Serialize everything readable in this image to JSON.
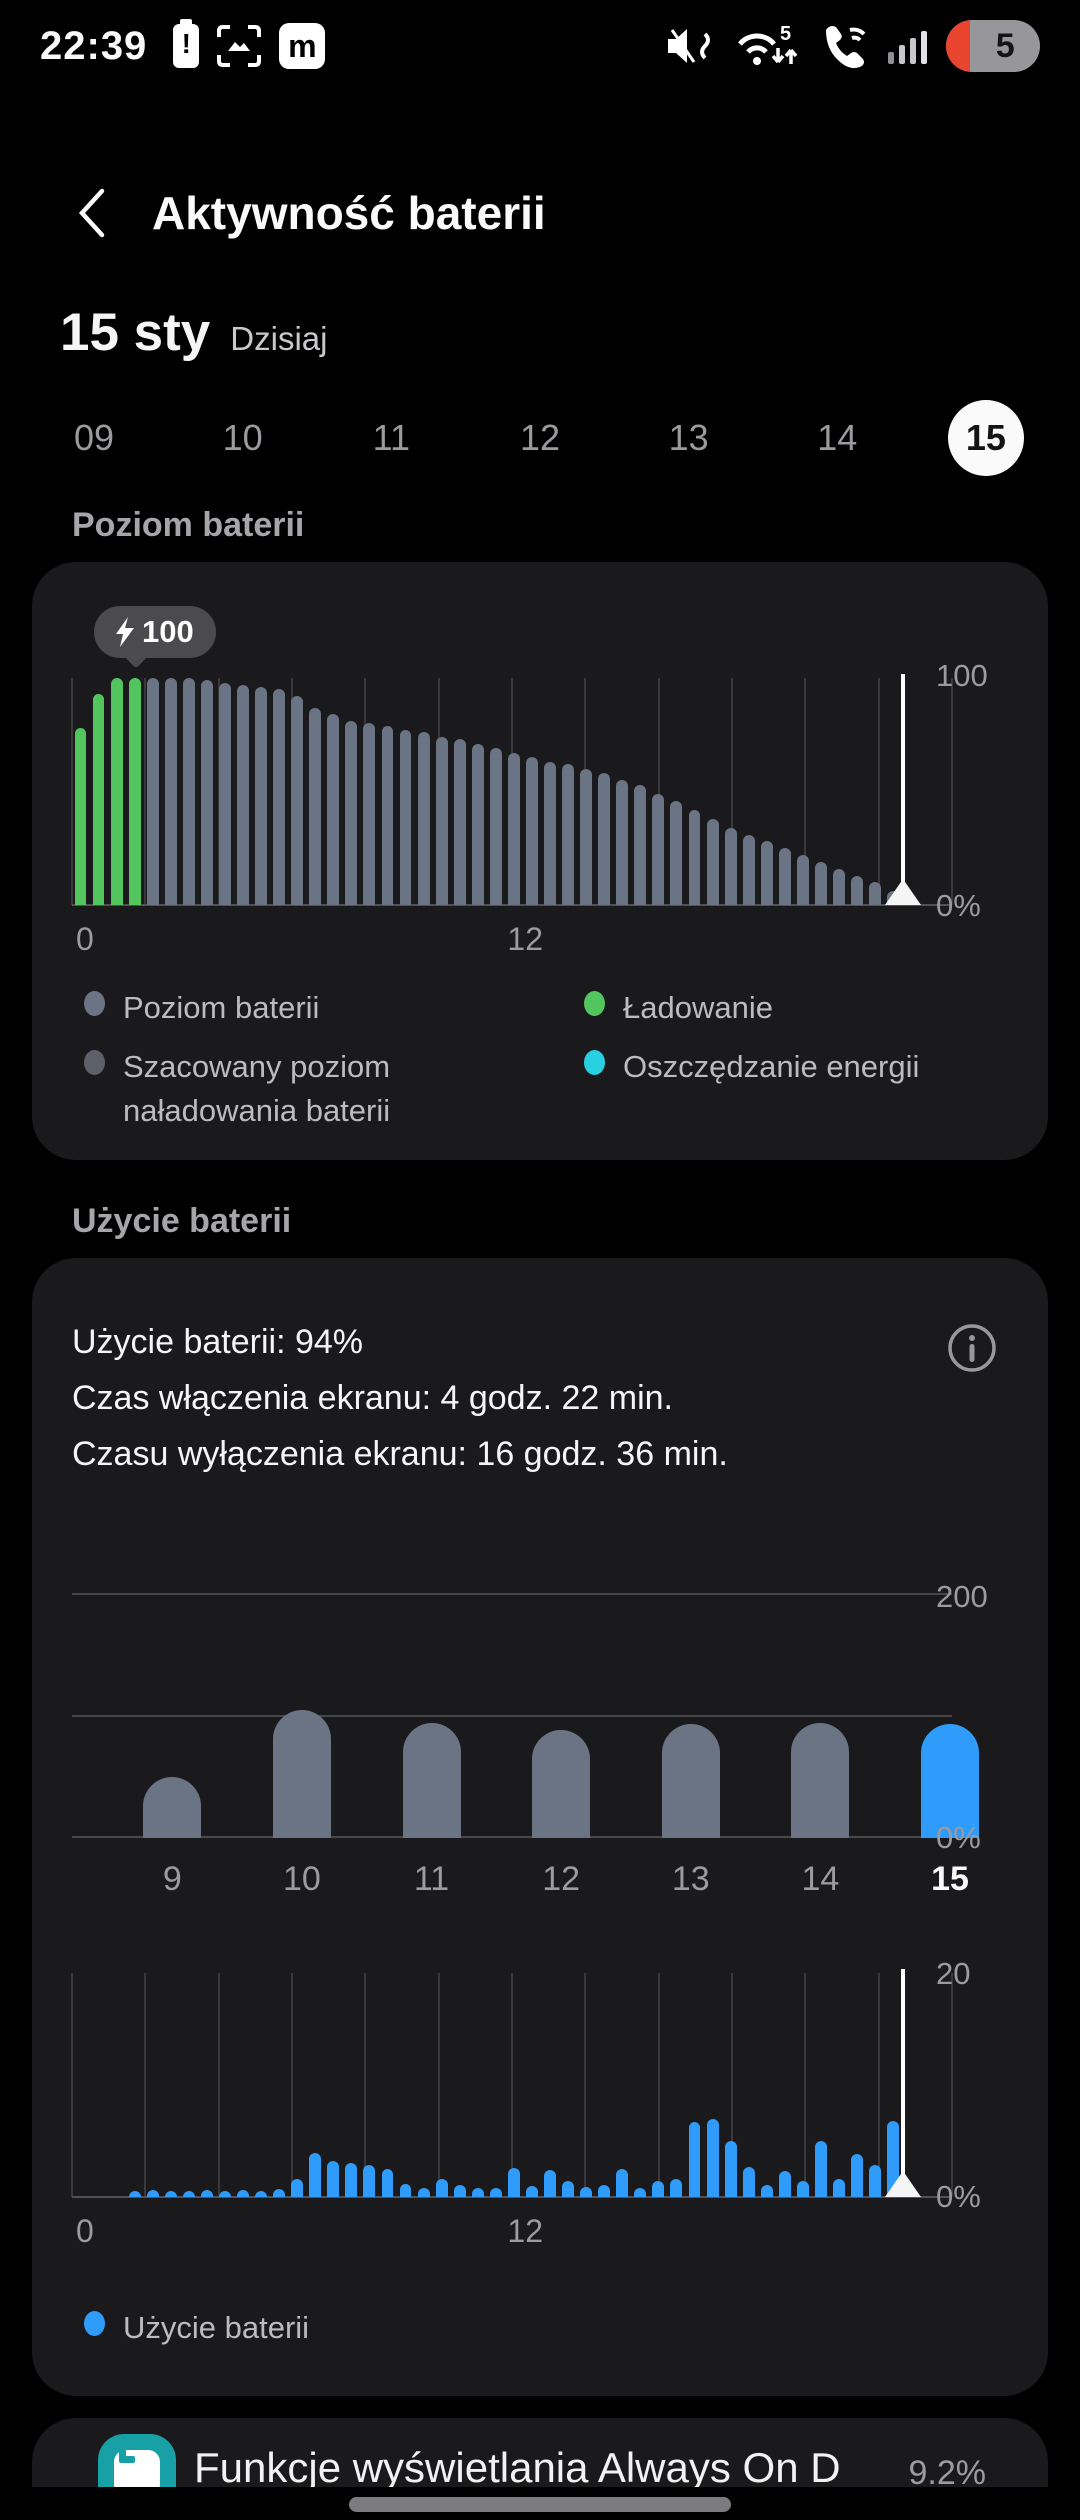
{
  "status_bar": {
    "time": "22:39",
    "left_icons": [
      "battery-alert-icon",
      "screenshot-icon",
      "m-app-icon"
    ],
    "m_app_letter": "m",
    "right_icons": [
      "mute-vibrate-icon",
      "wifi-arrows-icon",
      "wifi-calling-icon",
      "signal-icon",
      "battery-pill"
    ],
    "wifi_badge": "5",
    "battery_percent": "5"
  },
  "header": {
    "title": "Aktywność baterii"
  },
  "date": {
    "day": "15 sty",
    "label": "Dzisiaj"
  },
  "day_selector": {
    "days": [
      "09",
      "10",
      "11",
      "12",
      "13",
      "14",
      "15"
    ],
    "selected": "15"
  },
  "sections": {
    "battery_level": "Poziom baterii",
    "battery_usage": "Użycie baterii"
  },
  "colors": {
    "level_bar": "#6b7484",
    "charge_green": "#52c55e",
    "estimate_gray": "#5d6068",
    "power_save_cyan": "#27d1e2",
    "usage_blue": "#2f9bfa"
  },
  "level_card": {
    "badge": {
      "icon": "lightning-icon",
      "value": "100"
    },
    "legend": [
      {
        "label": "Poziom baterii",
        "color": "#6b7484"
      },
      {
        "label": "Ładowanie",
        "color": "#52c55e"
      },
      {
        "label": "Szacowany poziom naładowania baterii",
        "color": "#5d6068"
      },
      {
        "label": "Oszczędzanie energii",
        "color": "#27d1e2"
      }
    ]
  },
  "usage_card": {
    "stats": [
      "Użycie baterii: 94%",
      "Czas włączenia ekranu: 4 godz. 22 min.",
      "Czasu wyłączenia ekranu: 16 godz. 36 min."
    ],
    "info_icon": "info-icon",
    "legend": [
      {
        "label": "Użycie baterii",
        "color": "#2f9bfa"
      }
    ]
  },
  "app_list": {
    "items": [
      {
        "name": "Funkcje wyświetlania Always On D",
        "percent": "9.2%",
        "icon": "always-on-display-icon",
        "icon_color": "#17a0a6"
      }
    ]
  },
  "chart_data": [
    {
      "id": "battery_level",
      "type": "bar",
      "title": "Poziom baterii",
      "ylim": [
        0,
        100
      ],
      "ylabels": {
        "top": "100",
        "bottom": "0%"
      },
      "xlabels": [
        {
          "text": "0",
          "fraction": 0.0
        },
        {
          "text": "12",
          "fraction": 0.515
        }
      ],
      "x_gridline_count": 13,
      "bar_unit": "30min",
      "marker_fraction": 0.944,
      "charging_bars": 4,
      "values": [
        78,
        93,
        100,
        100,
        100,
        100,
        100,
        99,
        98,
        97,
        96,
        95,
        92,
        87,
        84,
        81,
        80,
        79,
        77,
        76,
        74,
        73,
        71,
        69,
        67,
        65,
        63,
        62,
        60,
        58,
        55,
        53,
        49,
        46,
        42,
        38,
        34,
        31,
        28,
        25,
        22,
        19,
        16,
        13,
        10,
        6
      ]
    },
    {
      "id": "daily_usage",
      "type": "bar",
      "categories": [
        "9",
        "10",
        "11",
        "12",
        "13",
        "14",
        "15"
      ],
      "values": [
        50,
        105,
        95,
        89,
        94,
        95,
        94
      ],
      "selected_category": "15",
      "ylim": [
        0,
        200
      ],
      "ygridlines": [
        0,
        100,
        200
      ],
      "ylabels": {
        "top": "200",
        "bottom": "0%"
      }
    },
    {
      "id": "usage_detail",
      "type": "bar",
      "ylim": [
        0,
        20
      ],
      "ylabels": {
        "top": "20",
        "bottom": "0%"
      },
      "xlabels": [
        {
          "text": "0",
          "fraction": 0.0
        },
        {
          "text": "12",
          "fraction": 0.515
        }
      ],
      "x_gridline_count": 13,
      "bar_unit": "30min",
      "marker_fraction": 0.944,
      "values": [
        0,
        0,
        0,
        0.5,
        0.6,
        0.5,
        0.5,
        0.6,
        0.5,
        0.6,
        0.5,
        0.7,
        1.6,
        3.9,
        3.2,
        3.0,
        2.9,
        2.5,
        1.2,
        0.8,
        1.6,
        1.1,
        0.8,
        0.8,
        2.6,
        1.0,
        2.4,
        1.4,
        0.9,
        1.1,
        2.5,
        0.8,
        1.4,
        1.6,
        6.7,
        7.0,
        5.0,
        2.7,
        1.1,
        2.3,
        1.4,
        5.0,
        1.6,
        3.8,
        2.9,
        6.8
      ]
    }
  ]
}
